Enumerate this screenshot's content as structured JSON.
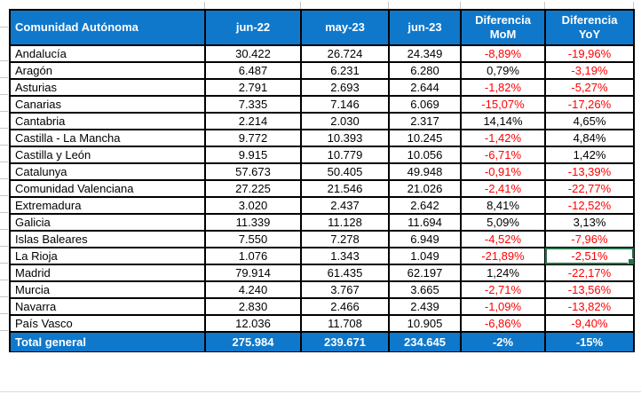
{
  "colors": {
    "header_bg": "#0f78cb",
    "negative_text": "#ff0000",
    "positive_text": "#000000",
    "selection_border": "#217346",
    "gridline": "#c6c6c6"
  },
  "table": {
    "columns": [
      {
        "label": "Comunidad Autónoma",
        "sub": ""
      },
      {
        "label": "jun-22",
        "sub": ""
      },
      {
        "label": "may-23",
        "sub": ""
      },
      {
        "label": "jun-23",
        "sub": ""
      },
      {
        "label": "Diferencia",
        "sub": "MoM"
      },
      {
        "label": "Diferencia",
        "sub": "YoY"
      }
    ],
    "rows": [
      {
        "name": "Andalucía",
        "jun22": "30.422",
        "may23": "26.724",
        "jun23": "24.349",
        "mom": "-8,89%",
        "yoy": "-19,96%"
      },
      {
        "name": "Aragón",
        "jun22": "6.487",
        "may23": "6.231",
        "jun23": "6.280",
        "mom": "0,79%",
        "yoy": "-3,19%"
      },
      {
        "name": "Asturias",
        "jun22": "2.791",
        "may23": "2.693",
        "jun23": "2.644",
        "mom": "-1,82%",
        "yoy": "-5,27%"
      },
      {
        "name": "Canarias",
        "jun22": "7.335",
        "may23": "7.146",
        "jun23": "6.069",
        "mom": "-15,07%",
        "yoy": "-17,26%"
      },
      {
        "name": "Cantabria",
        "jun22": "2.214",
        "may23": "2.030",
        "jun23": "2.317",
        "mom": "14,14%",
        "yoy": "4,65%"
      },
      {
        "name": "Castilla - La Mancha",
        "jun22": "9.772",
        "may23": "10.393",
        "jun23": "10.245",
        "mom": "-1,42%",
        "yoy": "4,84%"
      },
      {
        "name": "Castilla y León",
        "jun22": "9.915",
        "may23": "10.779",
        "jun23": "10.056",
        "mom": "-6,71%",
        "yoy": "1,42%"
      },
      {
        "name": "Catalunya",
        "jun22": "57.673",
        "may23": "50.405",
        "jun23": "49.948",
        "mom": "-0,91%",
        "yoy": "-13,39%"
      },
      {
        "name": "Comunidad Valenciana",
        "jun22": "27.225",
        "may23": "21.546",
        "jun23": "21.026",
        "mom": "-2,41%",
        "yoy": "-22,77%"
      },
      {
        "name": "Extremadura",
        "jun22": "3.020",
        "may23": "2.437",
        "jun23": "2.642",
        "mom": "8,41%",
        "yoy": "-12,52%"
      },
      {
        "name": "Galicia",
        "jun22": "11.339",
        "may23": "11.128",
        "jun23": "11.694",
        "mom": "5,09%",
        "yoy": "3,13%"
      },
      {
        "name": "Islas Baleares",
        "jun22": "7.550",
        "may23": "7.278",
        "jun23": "6.949",
        "mom": "-4,52%",
        "yoy": "-7,96%"
      },
      {
        "name": "La Rioja",
        "jun22": "1.076",
        "may23": "1.343",
        "jun23": "1.049",
        "mom": "-21,89%",
        "yoy": "-2,51%"
      },
      {
        "name": "Madrid",
        "jun22": "79.914",
        "may23": "61.435",
        "jun23": "62.197",
        "mom": "1,24%",
        "yoy": "-22,17%"
      },
      {
        "name": "Murcia",
        "jun22": "4.240",
        "may23": "3.767",
        "jun23": "3.665",
        "mom": "-2,71%",
        "yoy": "-13,56%"
      },
      {
        "name": "Navarra",
        "jun22": "2.830",
        "may23": "2.466",
        "jun23": "2.439",
        "mom": "-1,09%",
        "yoy": "-13,82%"
      },
      {
        "name": "País Vasco",
        "jun22": "12.036",
        "may23": "11.708",
        "jun23": "10.905",
        "mom": "-6,86%",
        "yoy": "-9,40%"
      }
    ],
    "total": {
      "name": "Total general",
      "jun22": "275.984",
      "may23": "239.671",
      "jun23": "234.645",
      "mom": "-2%",
      "yoy": "-15%"
    },
    "selected_cell": {
      "row": "La Rioja",
      "column": "yoy"
    }
  }
}
